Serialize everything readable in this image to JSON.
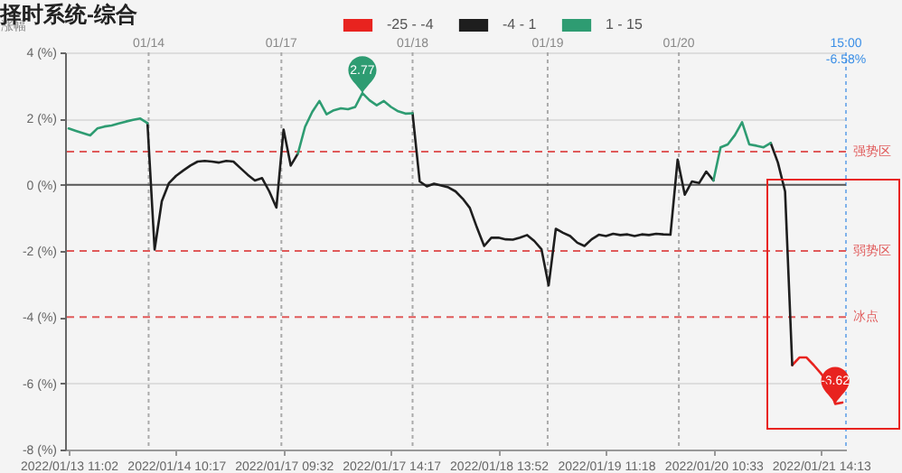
{
  "chart_data": {
    "type": "line",
    "title": "择时系统-综合",
    "ylabel": "涨幅",
    "legend": "top",
    "grid": true,
    "categories": [
      "2022/01/13 11:02",
      null,
      null,
      null,
      null,
      null,
      null,
      null,
      null,
      null,
      null,
      null,
      null,
      null,
      null,
      "2022/01/14 10:17",
      null,
      null,
      null,
      null,
      null,
      null,
      null,
      null,
      null,
      null,
      null,
      null,
      null,
      null,
      "2022/01/17 09:32",
      null,
      null,
      null,
      null,
      null,
      null,
      null,
      null,
      null,
      null,
      null,
      null,
      null,
      null,
      "2022/01/17 14:17",
      null,
      null,
      null,
      null,
      null,
      null,
      null,
      null,
      null,
      null,
      null,
      null,
      null,
      null,
      "2022/01/18 13:52",
      null,
      null,
      null,
      null,
      null,
      null,
      null,
      null,
      null,
      null,
      null,
      null,
      null,
      null,
      "2022/01/19 11:18",
      null,
      null,
      null,
      null,
      null,
      null,
      null,
      null,
      null,
      null,
      null,
      null,
      null,
      null,
      "2022/01/20 10:33",
      null,
      null,
      null,
      null,
      null,
      null,
      null,
      null,
      null,
      null,
      null,
      null,
      null,
      null,
      "2022/01/21 14:13",
      null,
      null,
      null
    ],
    "ylim": [
      -8,
      4
    ],
    "yticks": [
      {
        "value": -8,
        "label": "-8 (%)"
      },
      {
        "value": -6,
        "label": "-6 (%)"
      },
      {
        "value": -4,
        "label": "-4 (%)"
      },
      {
        "value": -2,
        "label": "-2 (%)"
      },
      {
        "value": 0,
        "label": "0 (%)"
      },
      {
        "value": 2,
        "label": "2 (%)"
      },
      {
        "value": 4,
        "label": "4 (%)"
      }
    ],
    "ref_lines": [
      {
        "axis": "y",
        "value": 0,
        "color": "#555555"
      },
      {
        "axis": "y",
        "value": 1,
        "label": "强势区",
        "color": "#e05a5a",
        "line_style": "dashed"
      },
      {
        "axis": "y",
        "value": -2,
        "label": "弱势区",
        "color": "#e05a5a",
        "line_style": "dashed"
      },
      {
        "axis": "y",
        "value": -4,
        "label": "冰点",
        "color": "#e05a5a",
        "line_style": "dashed"
      }
    ],
    "annotations": [
      {
        "text": "2.77",
        "y": 2.77
      },
      {
        "text": "-6.62",
        "y": -6.62
      },
      "01/14",
      "01/17",
      "01/18",
      "01/19",
      "01/20",
      "15:00\n-6.58%"
    ],
    "series": [
      {
        "name": "-25 - -4",
        "color": "#e8231f",
        "values": [
          null,
          null,
          null,
          null,
          null,
          null,
          null,
          null,
          null,
          null,
          null,
          null,
          null,
          null,
          null,
          null,
          null,
          null,
          null,
          null,
          null,
          null,
          null,
          null,
          null,
          null,
          null,
          null,
          null,
          null,
          null,
          null,
          null,
          null,
          null,
          null,
          null,
          null,
          null,
          null,
          null,
          null,
          null,
          null,
          null,
          null,
          null,
          null,
          null,
          null,
          null,
          null,
          null,
          null,
          null,
          null,
          null,
          null,
          null,
          null,
          null,
          null,
          null,
          null,
          null,
          null,
          null,
          null,
          null,
          null,
          null,
          null,
          null,
          null,
          null,
          null,
          null,
          null,
          null,
          null,
          null,
          null,
          null,
          null,
          null,
          null,
          null,
          null,
          null,
          null,
          null,
          null,
          null,
          null,
          null,
          null,
          null,
          null,
          null,
          null,
          null,
          -5.45,
          -5.22,
          -5.22,
          -5.45,
          -5.7,
          -5.97,
          -6.62,
          -6.58
        ]
      },
      {
        "name": "-4 - 1",
        "color": "#1e1e1e",
        "values": [
          null,
          null,
          null,
          null,
          null,
          null,
          null,
          null,
          null,
          null,
          null,
          1.86,
          -1.96,
          -0.5,
          0.05,
          0.27,
          0.43,
          0.58,
          0.7,
          0.72,
          0.7,
          0.67,
          0.72,
          0.7,
          0.5,
          0.3,
          0.13,
          0.2,
          -0.2,
          -0.69,
          1.67,
          0.58,
          0.94,
          null,
          null,
          null,
          null,
          null,
          null,
          null,
          null,
          null,
          null,
          null,
          null,
          null,
          null,
          null,
          2.16,
          0.1,
          -0.05,
          0.03,
          -0.02,
          -0.08,
          -0.2,
          -0.42,
          -0.7,
          -1.3,
          -1.85,
          -1.6,
          -1.6,
          -1.65,
          -1.66,
          -1.6,
          -1.52,
          -1.7,
          -1.95,
          -3.04,
          -1.33,
          -1.45,
          -1.55,
          -1.75,
          -1.85,
          -1.65,
          -1.51,
          -1.55,
          -1.48,
          -1.52,
          -1.5,
          -1.55,
          -1.5,
          -1.52,
          -1.48,
          -1.5,
          -1.51,
          0.76,
          -0.3,
          0.1,
          0.05,
          0.4,
          0.13,
          null,
          null,
          null,
          null,
          null,
          null,
          null,
          1.26,
          0.67,
          -0.2,
          -5.45,
          null,
          null,
          null,
          null,
          null,
          null,
          null
        ]
      },
      {
        "name": "1 - 15",
        "color": "#2e9c72",
        "values": [
          1.7,
          1.63,
          1.56,
          1.49,
          1.7,
          1.76,
          1.79,
          1.85,
          1.91,
          1.96,
          2.0,
          1.86,
          null,
          null,
          null,
          null,
          null,
          null,
          null,
          null,
          null,
          null,
          null,
          null,
          null,
          null,
          null,
          null,
          null,
          null,
          null,
          null,
          0.94,
          1.75,
          2.2,
          2.53,
          2.13,
          2.25,
          2.31,
          2.28,
          2.35,
          2.77,
          2.55,
          2.4,
          2.53,
          2.35,
          2.22,
          2.15,
          2.16,
          null,
          null,
          null,
          null,
          null,
          null,
          null,
          null,
          null,
          null,
          null,
          null,
          null,
          null,
          null,
          null,
          null,
          null,
          null,
          null,
          null,
          null,
          null,
          null,
          null,
          null,
          null,
          null,
          null,
          null,
          null,
          null,
          null,
          null,
          null,
          null,
          null,
          null,
          null,
          null,
          null,
          0.13,
          1.13,
          1.22,
          1.5,
          1.89,
          1.22,
          1.18,
          1.13,
          1.26,
          null,
          null,
          null,
          null,
          null,
          null,
          null,
          null,
          null,
          null
        ]
      }
    ]
  }
}
